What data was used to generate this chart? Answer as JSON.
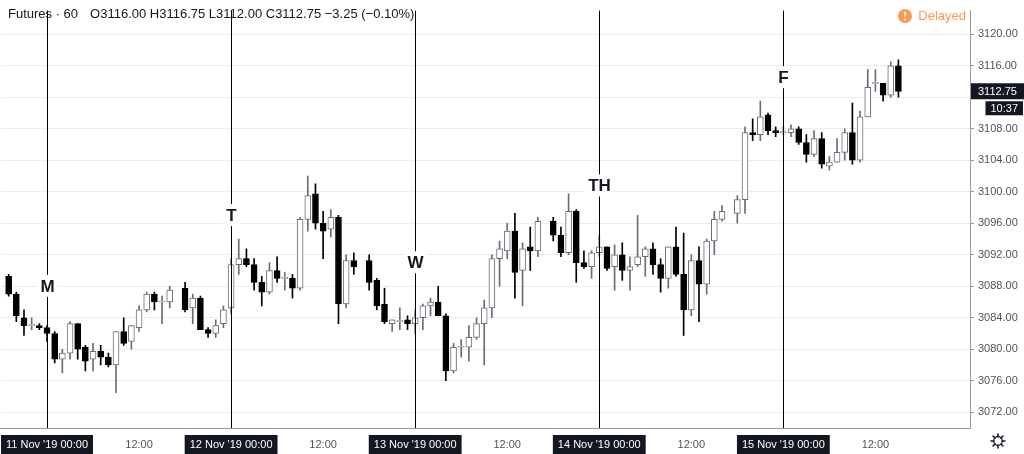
{
  "chart_data": {
    "type": "candlestick",
    "title": "Futures · 60",
    "subtitle": "O3116.00 H3116.75 L3112.00 C3112.75 −3.25 (−0.10%)",
    "x": [
      "2019-11-10T19:00",
      "2019-11-10T20:00",
      "2019-11-10T21:00",
      "2019-11-10T22:00",
      "2019-11-10T23:00",
      "2019-11-11T00:00",
      "2019-11-11T01:00",
      "2019-11-11T02:00",
      "2019-11-11T03:00",
      "2019-11-11T04:00",
      "2019-11-11T05:00",
      "2019-11-11T06:00",
      "2019-11-11T07:00",
      "2019-11-11T08:00",
      "2019-11-11T09:00",
      "2019-11-11T10:00",
      "2019-11-11T11:00",
      "2019-11-11T12:00",
      "2019-11-11T13:00",
      "2019-11-11T14:00",
      "2019-11-11T15:00",
      "2019-11-11T16:00",
      "2019-11-11T18:00",
      "2019-11-11T19:00",
      "2019-11-11T20:00",
      "2019-11-11T21:00",
      "2019-11-11T22:00",
      "2019-11-11T23:00",
      "2019-11-12T00:00",
      "2019-11-12T01:00",
      "2019-11-12T02:00",
      "2019-11-12T03:00",
      "2019-11-12T04:00",
      "2019-11-12T05:00",
      "2019-11-12T06:00",
      "2019-11-12T07:00",
      "2019-11-12T08:00",
      "2019-11-12T09:00",
      "2019-11-12T10:00",
      "2019-11-12T11:00",
      "2019-11-12T12:00",
      "2019-11-12T13:00",
      "2019-11-12T14:00",
      "2019-11-12T15:00",
      "2019-11-12T16:00",
      "2019-11-12T18:00",
      "2019-11-12T19:00",
      "2019-11-12T20:00",
      "2019-11-12T21:00",
      "2019-11-12T22:00",
      "2019-11-12T23:00",
      "2019-11-13T00:00",
      "2019-11-13T01:00",
      "2019-11-13T02:00",
      "2019-11-13T03:00",
      "2019-11-13T04:00",
      "2019-11-13T05:00",
      "2019-11-13T06:00",
      "2019-11-13T07:00",
      "2019-11-13T08:00",
      "2019-11-13T09:00",
      "2019-11-13T10:00",
      "2019-11-13T11:00",
      "2019-11-13T12:00",
      "2019-11-13T13:00",
      "2019-11-13T14:00",
      "2019-11-13T15:00",
      "2019-11-13T16:00",
      "2019-11-13T18:00",
      "2019-11-13T19:00",
      "2019-11-13T20:00",
      "2019-11-13T21:00",
      "2019-11-13T22:00",
      "2019-11-13T23:00",
      "2019-11-14T00:00",
      "2019-11-14T01:00",
      "2019-11-14T02:00",
      "2019-11-14T03:00",
      "2019-11-14T04:00",
      "2019-11-14T05:00",
      "2019-11-14T06:00",
      "2019-11-14T07:00",
      "2019-11-14T08:00",
      "2019-11-14T09:00",
      "2019-11-14T10:00",
      "2019-11-14T11:00",
      "2019-11-14T12:00",
      "2019-11-14T13:00",
      "2019-11-14T14:00",
      "2019-11-14T15:00",
      "2019-11-14T16:00",
      "2019-11-14T18:00",
      "2019-11-14T19:00",
      "2019-11-14T20:00",
      "2019-11-14T21:00",
      "2019-11-14T22:00",
      "2019-11-14T23:00",
      "2019-11-15T00:00",
      "2019-11-15T01:00",
      "2019-11-15T02:00",
      "2019-11-15T03:00",
      "2019-11-15T04:00",
      "2019-11-15T05:00",
      "2019-11-15T06:00",
      "2019-11-15T07:00",
      "2019-11-15T08:00",
      "2019-11-15T09:00",
      "2019-11-15T10:00",
      "2019-11-15T11:00",
      "2019-11-15T12:00",
      "2019-11-15T13:00",
      "2019-11-15T14:00",
      "2019-11-15T15:00"
    ],
    "ohlc": [
      [
        3089.25,
        3089.5,
        3086.75,
        3087.0
      ],
      [
        3087.0,
        3087.25,
        3083.5,
        3084.25
      ],
      [
        3084.0,
        3085.0,
        3081.75,
        3083.0
      ],
      [
        3083.0,
        3084.0,
        3082.5,
        3083.0
      ],
      [
        3083.0,
        3083.25,
        3082.5,
        3082.75
      ],
      [
        3082.75,
        3083.0,
        3081.0,
        3082.0
      ],
      [
        3082.0,
        3082.25,
        3078.25,
        3078.75
      ],
      [
        3078.75,
        3080.0,
        3077.0,
        3079.5
      ],
      [
        3079.5,
        3083.5,
        3078.75,
        3083.25
      ],
      [
        3083.25,
        3083.25,
        3078.75,
        3080.0
      ],
      [
        3080.25,
        3080.5,
        3077.25,
        3078.5
      ],
      [
        3078.75,
        3080.75,
        3077.25,
        3079.75
      ],
      [
        3079.75,
        3080.5,
        3078.0,
        3079.0
      ],
      [
        3079.0,
        3079.5,
        3077.75,
        3078.0
      ],
      [
        3078.0,
        3082.25,
        3074.5,
        3082.25
      ],
      [
        3082.25,
        3084.0,
        3080.5,
        3080.75
      ],
      [
        3081.0,
        3083.0,
        3080.0,
        3083.0
      ],
      [
        3082.75,
        3085.5,
        3082.25,
        3085.0
      ],
      [
        3085.0,
        3087.25,
        3084.75,
        3087.0
      ],
      [
        3087.0,
        3087.25,
        3085.0,
        3086.0
      ],
      [
        3086.0,
        3086.75,
        3083.25,
        3086.0
      ],
      [
        3086.0,
        3088.0,
        3085.25,
        3087.5
      ],
      [
        3087.75,
        3088.5,
        3084.75,
        3085.0
      ],
      [
        3085.25,
        3087.0,
        3083.25,
        3086.5
      ],
      [
        3086.5,
        3086.75,
        3082.5,
        3082.5
      ],
      [
        3082.5,
        3082.75,
        3081.5,
        3082.0
      ],
      [
        3082.0,
        3083.75,
        3081.5,
        3083.0
      ],
      [
        3083.25,
        3085.5,
        3082.75,
        3085.0
      ],
      [
        3085.25,
        3091.5,
        3084.5,
        3090.75
      ],
      [
        3090.75,
        3094.0,
        3089.5,
        3091.5
      ],
      [
        3091.5,
        3092.75,
        3090.5,
        3090.75
      ],
      [
        3090.75,
        3091.5,
        3087.5,
        3088.5
      ],
      [
        3088.5,
        3089.25,
        3085.5,
        3087.25
      ],
      [
        3087.25,
        3091.0,
        3087.0,
        3090.0
      ],
      [
        3090.0,
        3091.75,
        3088.5,
        3089.0
      ],
      [
        3089.0,
        3089.75,
        3087.5,
        3089.0
      ],
      [
        3089.0,
        3089.5,
        3086.5,
        3087.75
      ],
      [
        3087.75,
        3096.75,
        3087.5,
        3096.5
      ],
      [
        3096.5,
        3102.0,
        3095.0,
        3099.5
      ],
      [
        3099.75,
        3101.0,
        3095.25,
        3096.0
      ],
      [
        3096.0,
        3097.5,
        3091.5,
        3095.0
      ],
      [
        3095.25,
        3097.75,
        3094.25,
        3096.75
      ],
      [
        3096.75,
        3097.0,
        3083.25,
        3085.75
      ],
      [
        3085.75,
        3092.0,
        3085.25,
        3091.25
      ],
      [
        3091.25,
        3092.25,
        3089.5,
        3090.5
      ],
      [
        3091.25,
        3092.0,
        3087.5,
        3088.5
      ],
      [
        3088.75,
        3089.0,
        3085.0,
        3085.5
      ],
      [
        3085.75,
        3087.75,
        3083.25,
        3083.5
      ],
      [
        3083.25,
        3083.75,
        3082.25,
        3083.75
      ],
      [
        3083.5,
        3085.25,
        3082.5,
        3083.5
      ],
      [
        3083.75,
        3084.25,
        3082.5,
        3083.25
      ],
      [
        3083.25,
        3085.0,
        3082.0,
        3084.0
      ],
      [
        3084.0,
        3085.75,
        3082.5,
        3085.5
      ],
      [
        3085.5,
        3086.5,
        3084.25,
        3086.0
      ],
      [
        3086.0,
        3088.0,
        3084.25,
        3084.25
      ],
      [
        3084.25,
        3084.5,
        3076.0,
        3077.25
      ],
      [
        3077.25,
        3080.75,
        3077.0,
        3080.25
      ],
      [
        3080.25,
        3081.25,
        3079.0,
        3080.25
      ],
      [
        3080.25,
        3083.0,
        3078.5,
        3081.5
      ],
      [
        3081.5,
        3084.0,
        3081.25,
        3083.25
      ],
      [
        3083.25,
        3086.25,
        3078.0,
        3085.25
      ],
      [
        3085.25,
        3092.0,
        3084.0,
        3091.5
      ],
      [
        3091.5,
        3093.75,
        3088.0,
        3092.75
      ],
      [
        3092.5,
        3096.0,
        3091.5,
        3095.0
      ],
      [
        3095.0,
        3097.25,
        3086.5,
        3089.75
      ],
      [
        3090.0,
        3093.5,
        3085.5,
        3092.75
      ],
      [
        3093.0,
        3095.5,
        3090.0,
        3092.5
      ],
      [
        3092.5,
        3096.75,
        3091.75,
        3096.25
      ],
      [
        3096.25,
        3096.75,
        3093.75,
        3094.5
      ],
      [
        3094.5,
        3095.5,
        3091.75,
        3092.25
      ],
      [
        3092.25,
        3099.75,
        3092.0,
        3097.5
      ],
      [
        3097.5,
        3097.75,
        3088.5,
        3091.0
      ],
      [
        3091.0,
        3092.5,
        3090.25,
        3090.5
      ],
      [
        3090.5,
        3092.5,
        3089.0,
        3092.25
      ],
      [
        3092.25,
        3094.5,
        3091.75,
        3093.0
      ],
      [
        3093.0,
        3093.0,
        3090.0,
        3090.25
      ],
      [
        3090.5,
        3093.25,
        3087.5,
        3092.0
      ],
      [
        3092.0,
        3093.5,
        3088.75,
        3090.0
      ],
      [
        3090.0,
        3091.75,
        3087.5,
        3090.5
      ],
      [
        3090.75,
        3097.0,
        3090.5,
        3091.75
      ],
      [
        3091.75,
        3093.0,
        3089.25,
        3092.75
      ],
      [
        3092.75,
        3093.5,
        3089.5,
        3090.75
      ],
      [
        3090.75,
        3091.5,
        3087.25,
        3089.0
      ],
      [
        3089.0,
        3093.0,
        3087.75,
        3093.0
      ],
      [
        3093.0,
        3095.5,
        3089.25,
        3089.5
      ],
      [
        3089.5,
        3094.75,
        3081.75,
        3085.0
      ],
      [
        3085.0,
        3092.0,
        3084.25,
        3091.25
      ],
      [
        3091.25,
        3093.0,
        3083.5,
        3088.25
      ],
      [
        3088.25,
        3094.0,
        3087.0,
        3093.75
      ],
      [
        3093.75,
        3097.5,
        3092.0,
        3096.5
      ],
      [
        3096.5,
        3098.25,
        3096.25,
        3097.5
      ],
      [
        3097.25,
        3099.5,
        3096.0,
        3099.0
      ],
      [
        3099.0,
        3108.25,
        3097.25,
        3107.5
      ],
      [
        3107.5,
        3109.25,
        3106.5,
        3107.25
      ],
      [
        3107.25,
        3111.5,
        3106.5,
        3109.5
      ],
      [
        3109.75,
        3110.0,
        3107.25,
        3107.75
      ],
      [
        3107.75,
        3108.25,
        3107.0,
        3107.5
      ],
      [
        3107.5,
        3108.25,
        3107.25,
        3107.5
      ],
      [
        3107.5,
        3108.5,
        3107.0,
        3108.0
      ],
      [
        3108.0,
        3108.25,
        3106.0,
        3106.25
      ],
      [
        3106.25,
        3107.25,
        3103.75,
        3104.75
      ],
      [
        3104.75,
        3107.75,
        3104.5,
        3106.75
      ],
      [
        3106.75,
        3107.5,
        3103.0,
        3103.5
      ],
      [
        3103.25,
        3104.5,
        3102.75,
        3103.75
      ],
      [
        3103.75,
        3106.75,
        3103.75,
        3105.0
      ],
      [
        3105.0,
        3108.0,
        3104.0,
        3107.5
      ],
      [
        3107.5,
        3111.25,
        3103.5,
        3104.0
      ],
      [
        3104.0,
        3110.25,
        3103.75,
        3109.5
      ],
      [
        3109.5,
        3115.5,
        3109.5,
        3113.25
      ],
      [
        3113.75,
        3115.5,
        3112.75,
        3113.75
      ],
      [
        3113.75,
        3113.75,
        3111.5,
        3112.25
      ],
      [
        3112.25,
        3116.5,
        3112.0,
        3116.0
      ],
      [
        3116.0,
        3116.75,
        3112.0,
        3112.75
      ]
    ],
    "colors": [
      "#000000",
      "#000000",
      "#000000",
      "#6a6d78",
      "#000000",
      "#000000",
      "#000000",
      "#6a6d78",
      "#6a6d78",
      "#000000",
      "#000000",
      "#6a6d78",
      "#000000",
      "#000000",
      "#6a6d78",
      "#000000",
      "#6a6d78",
      "#6a6d78",
      "#6a6d78",
      "#000000",
      "#6a6d78",
      "#6a6d78",
      "#000000",
      "#6a6d78",
      "#000000",
      "#000000",
      "#6a6d78",
      "#6a6d78",
      "#6a6d78",
      "#6a6d78",
      "#000000",
      "#000000",
      "#000000",
      "#6a6d78",
      "#000000",
      "#6a6d78",
      "#000000",
      "#6a6d78",
      "#6a6d78",
      "#000000",
      "#000000",
      "#6a6d78",
      "#000000",
      "#6a6d78",
      "#000000",
      "#000000",
      "#000000",
      "#000000",
      "#6a6d78",
      "#6a6d78",
      "#000000",
      "#6a6d78",
      "#6a6d78",
      "#6a6d78",
      "#000000",
      "#000000",
      "#6a6d78",
      "#6a6d78",
      "#6a6d78",
      "#6a6d78",
      "#6a6d78",
      "#6a6d78",
      "#6a6d78",
      "#6a6d78",
      "#000000",
      "#6a6d78",
      "#000000",
      "#6a6d78",
      "#000000",
      "#000000",
      "#6a6d78",
      "#000000",
      "#000000",
      "#6a6d78",
      "#6a6d78",
      "#000000",
      "#6a6d78",
      "#000000",
      "#6a6d78",
      "#6a6d78",
      "#6a6d78",
      "#000000",
      "#000000",
      "#6a6d78",
      "#000000",
      "#000000",
      "#6a6d78",
      "#000000",
      "#6a6d78",
      "#6a6d78",
      "#6a6d78",
      "#6a6d78",
      "#6a6d78",
      "#000000",
      "#6a6d78",
      "#000000",
      "#000000",
      "#6a6d78",
      "#6a6d78",
      "#000000",
      "#000000",
      "#6a6d78",
      "#000000",
      "#6a6d78",
      "#6a6d78",
      "#6a6d78",
      "#000000",
      "#6a6d78",
      "#6a6d78",
      "#6a6d78",
      "#000000",
      "#6a6d78",
      "#000000"
    ],
    "xlim": [
      "2019-11-10T18:00",
      "2019-11-16T00:20"
    ],
    "xticks": [
      {
        "value": "2019-11-11T00:00",
        "label": "11 Nov '19 00:00"
      },
      {
        "value": "2019-11-11T12:00",
        "label": "12:00"
      },
      {
        "value": "2019-11-12T00:00",
        "label": "12 Nov '19 00:00"
      },
      {
        "value": "2019-11-12T12:00",
        "label": "12:00"
      },
      {
        "value": "2019-11-13T00:00",
        "label": "13 Nov '19 00:00"
      },
      {
        "value": "2019-11-13T12:00",
        "label": "12:00"
      },
      {
        "value": "2019-11-14T00:00",
        "label": "14 Nov '19 00:00"
      },
      {
        "value": "2019-11-14T12:00",
        "label": "12:00"
      },
      {
        "value": "2019-11-15T00:00",
        "label": "15 Nov '19 00:00"
      },
      {
        "value": "2019-11-15T12:00",
        "label": "12:00"
      }
    ],
    "ylim": [
      3070,
      3123
    ],
    "yticks": [
      {
        "value": 3072,
        "label": "3072.00"
      },
      {
        "value": 3076,
        "label": "3076.00"
      },
      {
        "value": 3080,
        "label": "3080.00"
      },
      {
        "value": 3084,
        "label": "3084.00"
      },
      {
        "value": 3088,
        "label": "3088.00"
      },
      {
        "value": 3092,
        "label": "3092.00"
      },
      {
        "value": 3096,
        "label": "3096.00"
      },
      {
        "value": 3100,
        "label": "3100.00"
      },
      {
        "value": 3104,
        "label": "3104.00"
      },
      {
        "value": 3108,
        "label": "3108.00"
      },
      {
        "value": 3112,
        "label": null
      },
      {
        "value": 3116,
        "label": "3116.00"
      },
      {
        "value": 3120,
        "label": "3120.00"
      }
    ],
    "grid": "y",
    "ref_lines": [
      {
        "axis": "x",
        "value": "2019-11-11T00:00",
        "label": "M",
        "color": "#000000"
      },
      {
        "axis": "x",
        "value": "2019-11-12T00:00",
        "label": "T",
        "color": "#000000"
      },
      {
        "axis": "x",
        "value": "2019-11-13T00:00",
        "label": "W",
        "color": "#000000"
      },
      {
        "axis": "x",
        "value": "2019-11-14T00:00",
        "label": "TH",
        "color": "#000000"
      },
      {
        "axis": "x",
        "value": "2019-11-15T00:00",
        "label": "F",
        "color": "#000000"
      }
    ],
    "annotations": [
      "Delayed",
      "3112.75",
      "10:37"
    ]
  }
}
